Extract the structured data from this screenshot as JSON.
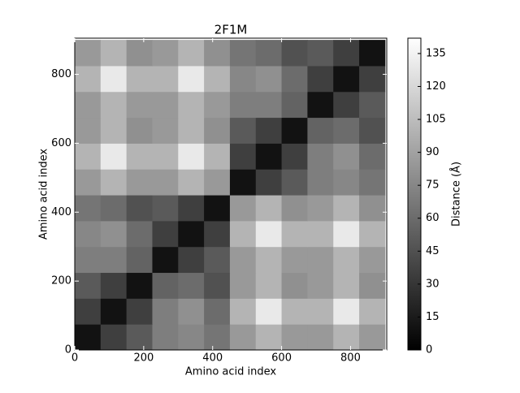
{
  "chart_data": {
    "type": "heatmap",
    "title": "2F1M",
    "xlabel": "Amino acid index",
    "ylabel": "Amino acid index",
    "xbins": [
      0,
      75,
      150,
      225,
      300,
      375,
      450,
      525,
      600,
      675,
      750,
      825,
      900
    ],
    "ybins": [
      0,
      75,
      150,
      225,
      300,
      375,
      450,
      525,
      600,
      675,
      750,
      825,
      900
    ],
    "z": [
      [
        10,
        35,
        50,
        70,
        75,
        65,
        85,
        100,
        85,
        85,
        100,
        85
      ],
      [
        35,
        10,
        35,
        70,
        80,
        60,
        100,
        130,
        100,
        100,
        130,
        100
      ],
      [
        50,
        35,
        10,
        55,
        60,
        45,
        85,
        100,
        80,
        85,
        100,
        80
      ],
      [
        70,
        70,
        55,
        10,
        35,
        50,
        85,
        100,
        85,
        85,
        100,
        85
      ],
      [
        75,
        80,
        60,
        35,
        10,
        35,
        100,
        130,
        100,
        100,
        130,
        100
      ],
      [
        65,
        60,
        45,
        50,
        35,
        10,
        85,
        100,
        80,
        85,
        100,
        80
      ],
      [
        85,
        100,
        85,
        85,
        100,
        85,
        10,
        35,
        50,
        70,
        75,
        65
      ],
      [
        100,
        130,
        100,
        100,
        130,
        100,
        35,
        10,
        35,
        70,
        80,
        60
      ],
      [
        85,
        100,
        80,
        85,
        100,
        80,
        50,
        35,
        10,
        55,
        60,
        45
      ],
      [
        85,
        100,
        85,
        85,
        100,
        85,
        70,
        70,
        55,
        10,
        35,
        50
      ],
      [
        100,
        130,
        100,
        100,
        130,
        100,
        75,
        80,
        60,
        35,
        10,
        35
      ],
      [
        85,
        100,
        80,
        85,
        100,
        80,
        65,
        60,
        45,
        50,
        35,
        10
      ]
    ],
    "colormap": "gray",
    "xlim": [
      0,
      905
    ],
    "xticks": [
      0,
      200,
      400,
      600,
      800
    ],
    "ylim": [
      0,
      905
    ],
    "yticks": [
      0,
      200,
      400,
      600,
      800
    ],
    "zlim": [
      0,
      142
    ],
    "zticks": [
      0,
      15,
      30,
      45,
      60,
      75,
      90,
      105,
      120,
      135
    ],
    "colorbar_label": "Distance (Å)"
  }
}
